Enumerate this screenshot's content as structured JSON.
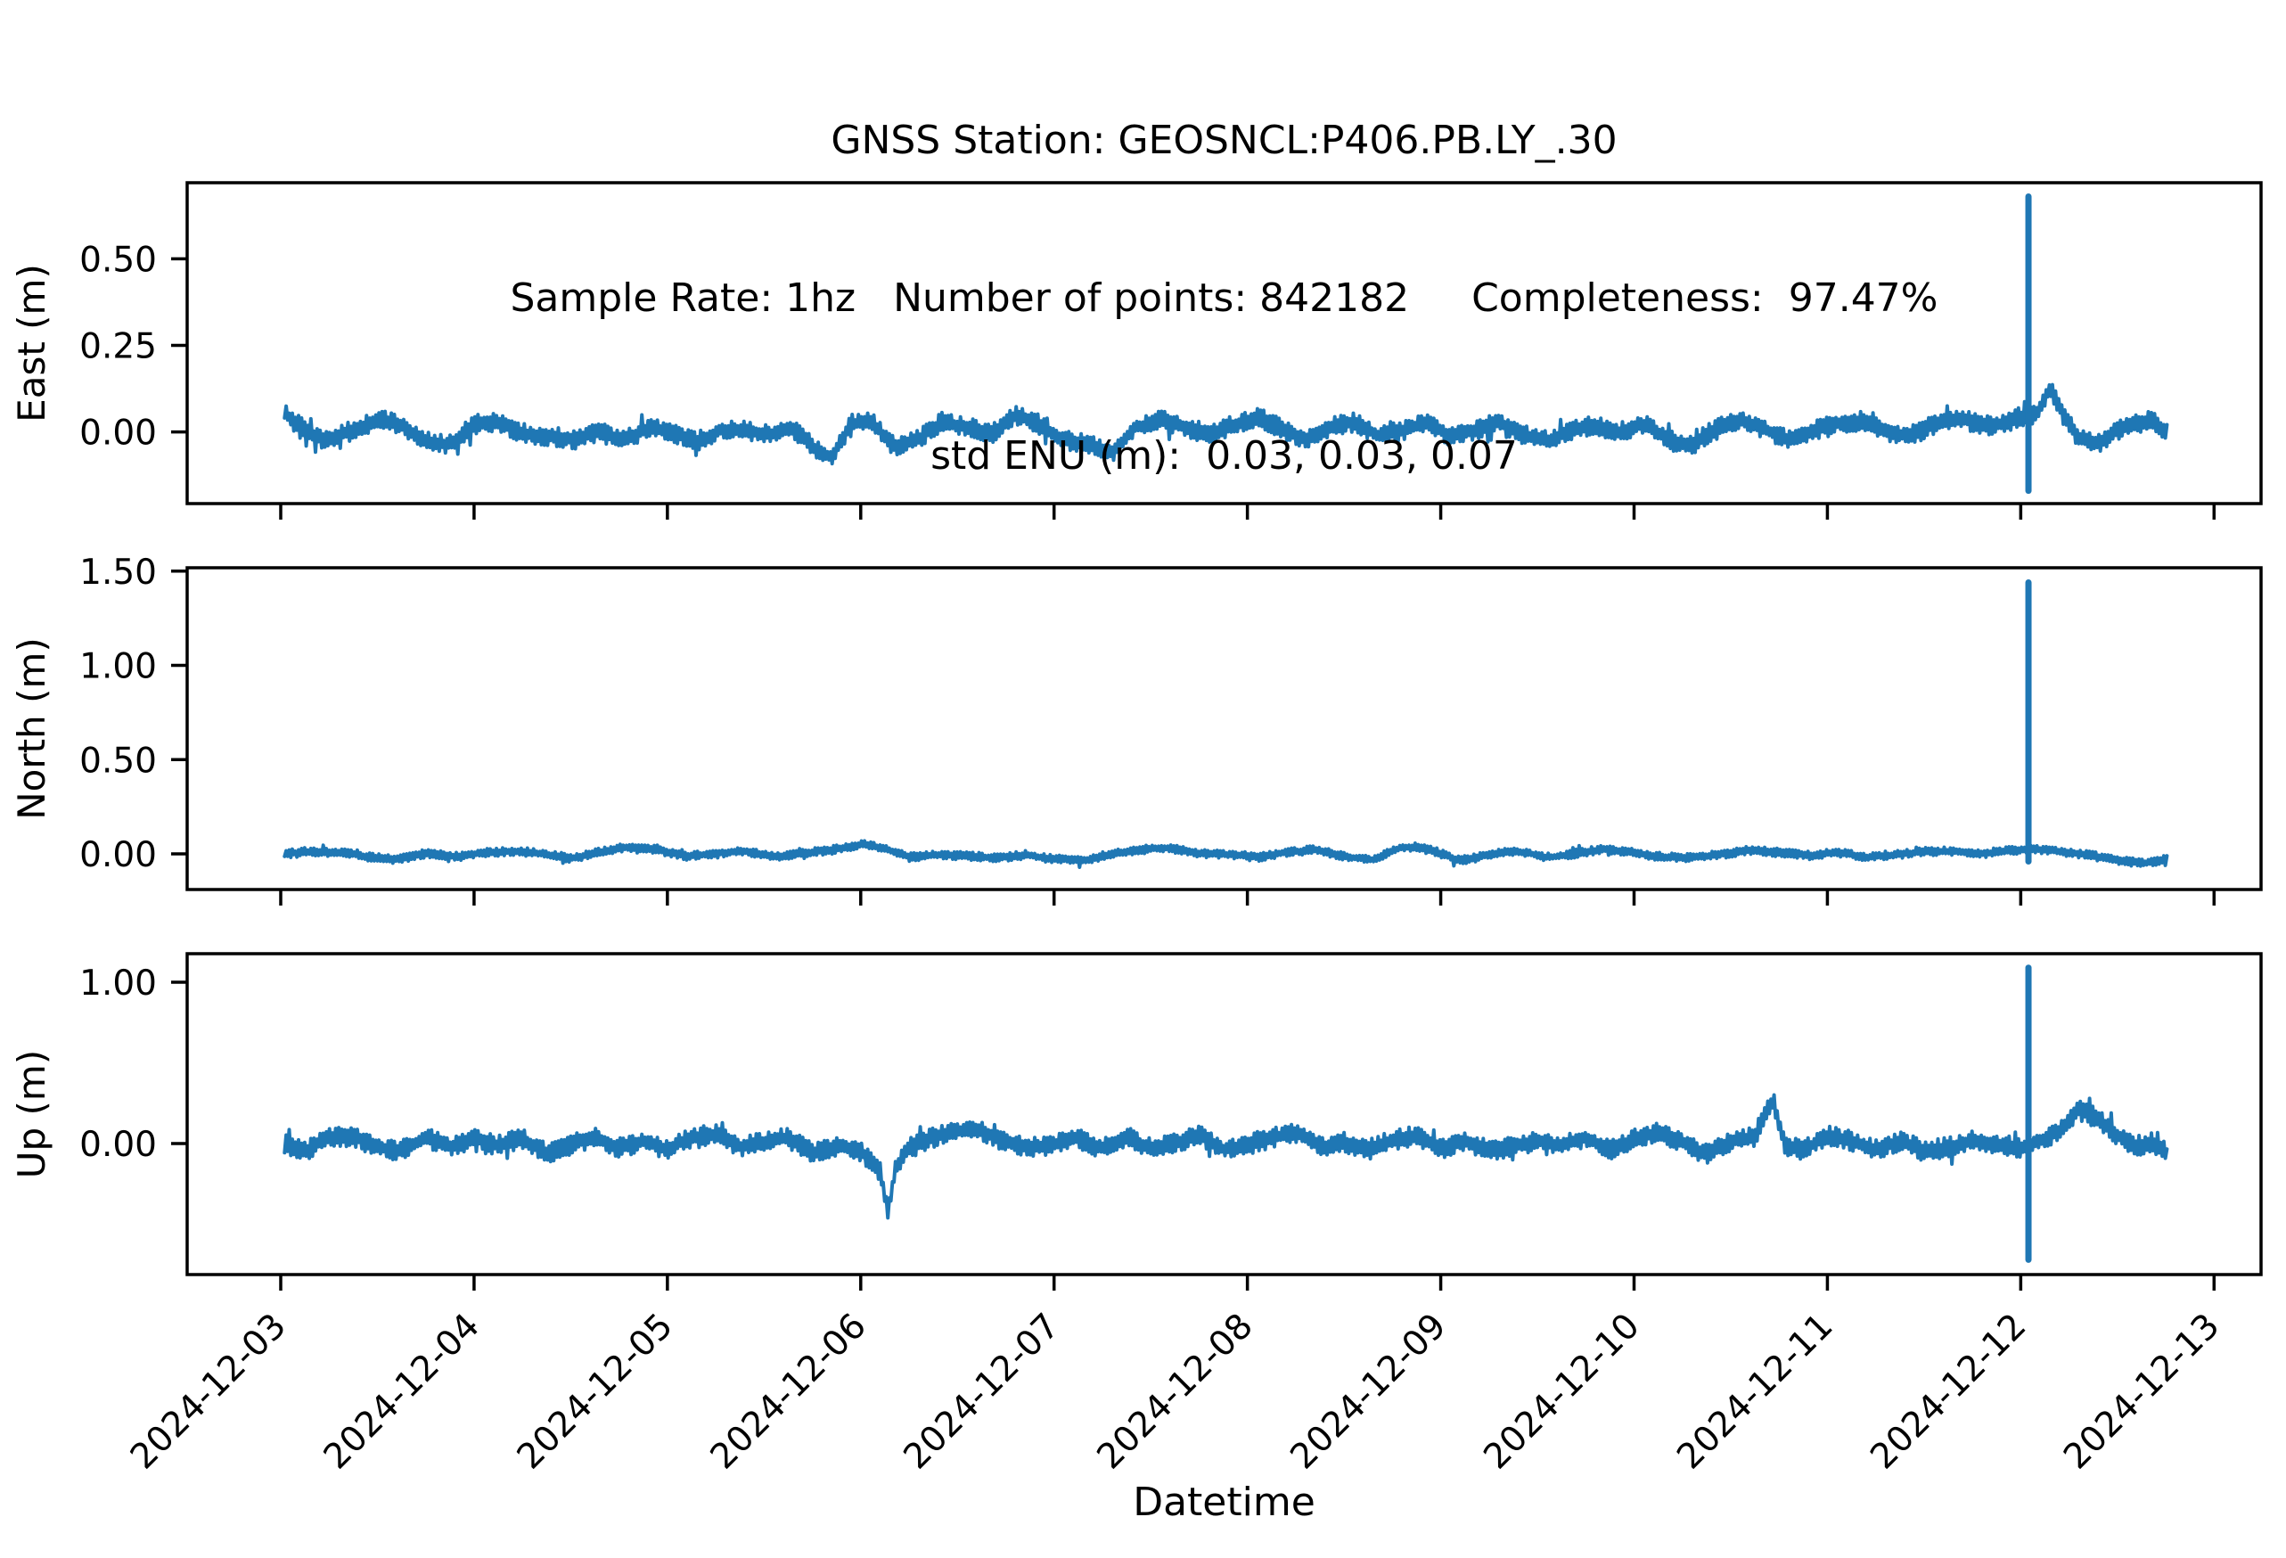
{
  "figure": {
    "background": "#ffffff",
    "axis_color": "#000000",
    "series_color": "#1f77b4"
  },
  "chart_data": {
    "type": "line",
    "title_lines": [
      "GNSS Station: GEOSNCL:P406.PB.LY_.30",
      "Sample Rate: 1hz   Number of points: 842182     Completeness:  97.47%",
      "std ENU (m):  0.03, 0.03, 0.07"
    ],
    "station": "GEOSNCL:P406.PB.LY_.30",
    "sample_rate": "1hz",
    "number_of_points": 842182,
    "completeness_pct": 97.47,
    "std_enu_m": [
      0.03,
      0.03,
      0.07
    ],
    "xlabel": "Datetime",
    "grid": false,
    "legend": "none",
    "series_color": "#1f77b4",
    "x_tick_labels": [
      "2024-12-03",
      "2024-12-04",
      "2024-12-05",
      "2024-12-06",
      "2024-12-07",
      "2024-12-08",
      "2024-12-09",
      "2024-12-10",
      "2024-12-11",
      "2024-12-12",
      "2024-12-13"
    ],
    "x_tick_days": [
      0,
      1,
      2,
      3,
      4,
      5,
      6,
      7,
      8,
      9,
      10
    ],
    "xlim_days": [
      -0.484,
      10.243
    ],
    "data_day_range": [
      0.02,
      9.76
    ],
    "subplots": [
      {
        "name": "east",
        "ylabel": "East (m)",
        "ylim": [
          -0.207,
          0.72
        ],
        "ytick_values": [
          0.0,
          0.25,
          0.5
        ],
        "ytick_labels": [
          "0.00",
          "0.25",
          "0.50"
        ],
        "noise_halfwidth_m": 0.028,
        "spike": {
          "day": 9.04,
          "peak_m": 0.68,
          "trough_m": -0.17
        },
        "mean_path": [
          [
            0.02,
            0.05
          ],
          [
            0.1,
            0.01
          ],
          [
            0.22,
            -0.03
          ],
          [
            0.35,
            0.0
          ],
          [
            0.5,
            0.03
          ],
          [
            0.62,
            0.02
          ],
          [
            0.75,
            -0.02
          ],
          [
            0.88,
            -0.03
          ],
          [
            1.0,
            0.02
          ],
          [
            1.12,
            0.03
          ],
          [
            1.25,
            0.0
          ],
          [
            1.4,
            -0.02
          ],
          [
            1.52,
            -0.03
          ],
          [
            1.65,
            0.0
          ],
          [
            1.78,
            -0.02
          ],
          [
            1.9,
            0.01
          ],
          [
            2.02,
            0.0
          ],
          [
            2.15,
            -0.02
          ],
          [
            2.28,
            0.01
          ],
          [
            2.4,
            0.0
          ],
          [
            2.52,
            -0.01
          ],
          [
            2.65,
            0.01
          ],
          [
            2.78,
            -0.06
          ],
          [
            2.85,
            -0.08
          ],
          [
            2.95,
            0.02
          ],
          [
            3.05,
            0.04
          ],
          [
            3.18,
            -0.04
          ],
          [
            3.3,
            -0.02
          ],
          [
            3.42,
            0.03
          ],
          [
            3.55,
            0.02
          ],
          [
            3.68,
            -0.01
          ],
          [
            3.8,
            0.04
          ],
          [
            3.92,
            0.02
          ],
          [
            4.05,
            -0.02
          ],
          [
            4.18,
            -0.04
          ],
          [
            4.3,
            -0.06
          ],
          [
            4.42,
            0.02
          ],
          [
            4.55,
            0.04
          ],
          [
            4.68,
            0.01
          ],
          [
            4.8,
            -0.01
          ],
          [
            4.92,
            0.02
          ],
          [
            5.05,
            0.04
          ],
          [
            5.18,
            0.0
          ],
          [
            5.3,
            -0.02
          ],
          [
            5.42,
            0.02
          ],
          [
            5.55,
            0.03
          ],
          [
            5.68,
            -0.01
          ],
          [
            5.8,
            0.01
          ],
          [
            5.92,
            0.03
          ],
          [
            6.05,
            -0.02
          ],
          [
            6.18,
            0.0
          ],
          [
            6.3,
            0.03
          ],
          [
            6.42,
            -0.01
          ],
          [
            6.55,
            -0.03
          ],
          [
            6.68,
            0.01
          ],
          [
            6.8,
            0.03
          ],
          [
            6.92,
            0.0
          ],
          [
            7.05,
            0.02
          ],
          [
            7.18,
            -0.02
          ],
          [
            7.3,
            -0.04
          ],
          [
            7.42,
            0.0
          ],
          [
            7.55,
            0.03
          ],
          [
            7.68,
            0.01
          ],
          [
            7.8,
            -0.02
          ],
          [
            7.92,
            0.0
          ],
          [
            8.05,
            0.03
          ],
          [
            8.18,
            0.04
          ],
          [
            8.3,
            0.0
          ],
          [
            8.42,
            -0.02
          ],
          [
            8.55,
            0.02
          ],
          [
            8.68,
            0.04
          ],
          [
            8.8,
            0.01
          ],
          [
            8.9,
            0.02
          ],
          [
            9.0,
            0.05
          ],
          [
            9.08,
            0.06
          ],
          [
            9.15,
            0.13
          ],
          [
            9.22,
            0.05
          ],
          [
            9.3,
            -0.02
          ],
          [
            9.4,
            -0.03
          ],
          [
            9.5,
            0.01
          ],
          [
            9.58,
            0.02
          ],
          [
            9.68,
            0.03
          ],
          [
            9.76,
            -0.01
          ]
        ]
      },
      {
        "name": "north",
        "ylabel": "North (m)",
        "ylim": [
          -0.189,
          1.518
        ],
        "ytick_values": [
          0.0,
          0.5,
          1.0,
          1.5
        ],
        "ytick_labels": [
          "0.00",
          "0.50",
          "1.00",
          "1.50"
        ],
        "noise_halfwidth_m": 0.022,
        "spike": {
          "day": 9.04,
          "peak_m": 1.44,
          "trough_m": -0.04
        },
        "mean_path": [
          [
            0.02,
            0.0
          ],
          [
            0.15,
            0.02
          ],
          [
            0.3,
            0.01
          ],
          [
            0.45,
            -0.02
          ],
          [
            0.6,
            -0.03
          ],
          [
            0.75,
            0.0
          ],
          [
            0.9,
            -0.02
          ],
          [
            1.05,
            0.01
          ],
          [
            1.2,
            0.02
          ],
          [
            1.35,
            0.0
          ],
          [
            1.5,
            -0.02
          ],
          [
            1.65,
            0.01
          ],
          [
            1.8,
            0.03
          ],
          [
            1.95,
            0.02
          ],
          [
            2.1,
            -0.01
          ],
          [
            2.25,
            0.0
          ],
          [
            2.4,
            0.02
          ],
          [
            2.55,
            -0.01
          ],
          [
            2.7,
            0.0
          ],
          [
            2.85,
            0.02
          ],
          [
            3.0,
            0.05
          ],
          [
            3.1,
            0.03
          ],
          [
            3.25,
            -0.02
          ],
          [
            3.4,
            0.0
          ],
          [
            3.55,
            -0.01
          ],
          [
            3.7,
            -0.02
          ],
          [
            3.85,
            0.0
          ],
          [
            4.0,
            -0.03
          ],
          [
            4.15,
            -0.04
          ],
          [
            4.3,
            0.0
          ],
          [
            4.45,
            0.02
          ],
          [
            4.6,
            0.03
          ],
          [
            4.75,
            0.01
          ],
          [
            4.9,
            0.0
          ],
          [
            5.05,
            -0.02
          ],
          [
            5.2,
            0.01
          ],
          [
            5.35,
            0.02
          ],
          [
            5.5,
            -0.02
          ],
          [
            5.65,
            -0.03
          ],
          [
            5.8,
            0.04
          ],
          [
            5.95,
            0.02
          ],
          [
            6.1,
            -0.03
          ],
          [
            6.25,
            0.0
          ],
          [
            6.4,
            0.01
          ],
          [
            6.55,
            -0.02
          ],
          [
            6.7,
            0.0
          ],
          [
            6.85,
            0.02
          ],
          [
            7.0,
            0.01
          ],
          [
            7.15,
            -0.01
          ],
          [
            7.3,
            -0.02
          ],
          [
            7.45,
            0.0
          ],
          [
            7.6,
            0.02
          ],
          [
            7.75,
            0.0
          ],
          [
            7.9,
            -0.01
          ],
          [
            8.05,
            0.01
          ],
          [
            8.2,
            -0.02
          ],
          [
            8.35,
            0.0
          ],
          [
            8.5,
            0.02
          ],
          [
            8.65,
            0.01
          ],
          [
            8.8,
            0.0
          ],
          [
            8.95,
            0.02
          ],
          [
            9.05,
            0.02
          ],
          [
            9.2,
            0.01
          ],
          [
            9.35,
            0.0
          ],
          [
            9.5,
            -0.03
          ],
          [
            9.62,
            -0.05
          ],
          [
            9.7,
            -0.04
          ],
          [
            9.76,
            -0.02
          ]
        ]
      },
      {
        "name": "up",
        "ylabel": "Up (m)",
        "ylim": [
          -0.812,
          1.177
        ],
        "ytick_values": [
          0.0,
          1.0
        ],
        "ytick_labels": [
          "0.00",
          "1.00"
        ],
        "noise_halfwidth_m": 0.062,
        "spike": {
          "day": 9.04,
          "peak_m": 1.09,
          "trough_m": -0.72
        },
        "mean_path": [
          [
            0.02,
            0.0
          ],
          [
            0.12,
            -0.05
          ],
          [
            0.25,
            0.03
          ],
          [
            0.38,
            0.05
          ],
          [
            0.5,
            0.0
          ],
          [
            0.62,
            -0.04
          ],
          [
            0.75,
            0.03
          ],
          [
            0.88,
            -0.02
          ],
          [
            1.0,
            0.04
          ],
          [
            1.12,
            -0.03
          ],
          [
            1.25,
            0.02
          ],
          [
            1.38,
            -0.05
          ],
          [
            1.5,
            0.0
          ],
          [
            1.62,
            0.04
          ],
          [
            1.75,
            -0.02
          ],
          [
            1.88,
            0.03
          ],
          [
            2.0,
            -0.04
          ],
          [
            2.12,
            0.02
          ],
          [
            2.25,
            0.05
          ],
          [
            2.38,
            -0.02
          ],
          [
            2.5,
            0.0
          ],
          [
            2.62,
            0.03
          ],
          [
            2.75,
            -0.04
          ],
          [
            2.88,
            0.0
          ],
          [
            3.0,
            -0.05
          ],
          [
            3.1,
            -0.18
          ],
          [
            3.14,
            -0.42
          ],
          [
            3.18,
            -0.15
          ],
          [
            3.25,
            -0.02
          ],
          [
            3.38,
            0.03
          ],
          [
            3.5,
            0.06
          ],
          [
            3.62,
            0.08
          ],
          [
            3.75,
            0.02
          ],
          [
            3.88,
            -0.03
          ],
          [
            4.0,
            0.0
          ],
          [
            4.12,
            0.05
          ],
          [
            4.25,
            -0.02
          ],
          [
            4.38,
            0.03
          ],
          [
            4.5,
            -0.04
          ],
          [
            4.62,
            0.0
          ],
          [
            4.75,
            0.04
          ],
          [
            4.88,
            -0.05
          ],
          [
            5.0,
            0.0
          ],
          [
            5.12,
            0.05
          ],
          [
            5.25,
            0.07
          ],
          [
            5.38,
            -0.02
          ],
          [
            5.5,
            0.02
          ],
          [
            5.62,
            -0.04
          ],
          [
            5.75,
            0.0
          ],
          [
            5.88,
            0.04
          ],
          [
            6.0,
            -0.03
          ],
          [
            6.12,
            0.02
          ],
          [
            6.25,
            -0.05
          ],
          [
            6.38,
            0.0
          ],
          [
            6.5,
            0.04
          ],
          [
            6.62,
            -0.02
          ],
          [
            6.75,
            0.03
          ],
          [
            6.88,
            -0.04
          ],
          [
            7.0,
            0.02
          ],
          [
            7.12,
            0.05
          ],
          [
            7.25,
            0.0
          ],
          [
            7.38,
            -0.05
          ],
          [
            7.5,
            0.02
          ],
          [
            7.62,
            0.04
          ],
          [
            7.72,
            0.28
          ],
          [
            7.78,
            0.0
          ],
          [
            7.88,
            -0.03
          ],
          [
            8.0,
            0.04
          ],
          [
            8.12,
            0.0
          ],
          [
            8.25,
            -0.04
          ],
          [
            8.38,
            0.02
          ],
          [
            8.5,
            -0.06
          ],
          [
            8.62,
            -0.02
          ],
          [
            8.75,
            0.04
          ],
          [
            8.88,
            0.0
          ],
          [
            9.0,
            -0.03
          ],
          [
            9.1,
            0.02
          ],
          [
            9.2,
            0.08
          ],
          [
            9.3,
            0.2
          ],
          [
            9.38,
            0.15
          ],
          [
            9.48,
            0.05
          ],
          [
            9.58,
            -0.02
          ],
          [
            9.68,
            0.02
          ],
          [
            9.76,
            -0.06
          ]
        ]
      }
    ]
  }
}
